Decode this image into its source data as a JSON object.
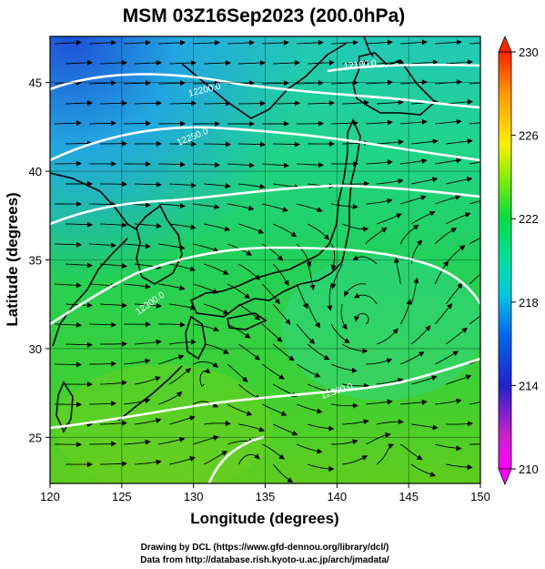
{
  "title": "MSM 03Z16Sep2023 (200.0hPa)",
  "credits": [
    "Drawing by DCL (https://www.gfd-dennou.org/library/dcl/)",
    "Data from http://database.rish.kyoto-u.ac.jp/arch/jmadata/"
  ],
  "chart_data": {
    "type": "heatmap",
    "title": "MSM 03Z16Sep2023 (200.0hPa)",
    "xlabel": "Longitude (degrees)",
    "ylabel": "Latitude  (degrees)",
    "xlim": [
      120,
      150
    ],
    "ylim": [
      22.4,
      47.6
    ],
    "xticks": [
      120,
      125,
      130,
      135,
      140,
      145,
      150
    ],
    "yticks": [
      25,
      30,
      35,
      40,
      45
    ],
    "grid": true,
    "colorbar": {
      "range": [
        210,
        230
      ],
      "ticks": [
        210,
        214,
        218,
        222,
        226,
        230
      ],
      "colors": [
        "#ff00ff",
        "#8800cc",
        "#2222cc",
        "#00aaee",
        "#00e0a0",
        "#00dd44",
        "#88ee00",
        "#ffee00",
        "#ff9900",
        "#ff2200"
      ]
    },
    "contour_labels": [
      "12100.0",
      "12200.0",
      "12250.0",
      "12300.0"
    ],
    "field_colors": {
      "northwest": "#2f6fe0",
      "north": "#20c8b0",
      "center": "#20d050",
      "south": "#60d020"
    }
  }
}
